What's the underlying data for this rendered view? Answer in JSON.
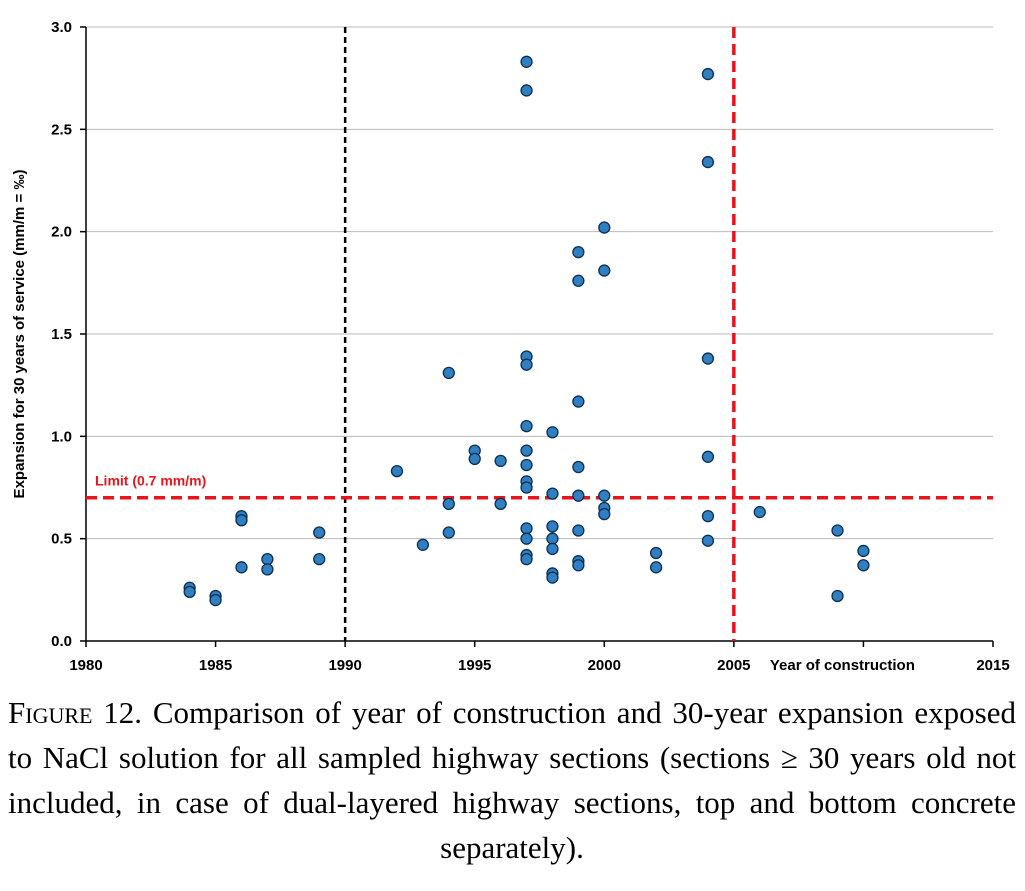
{
  "chart_data": {
    "type": "scatter",
    "ylabel": "Expansion for 30 years of service (mm/m = ‰)",
    "xlabel": "Year of construction",
    "xlim": [
      1980,
      2015
    ],
    "ylim": [
      0.0,
      3.0
    ],
    "x_ticks": [
      "1980",
      "1985",
      "1990",
      "1995",
      "2000",
      "2005",
      "2015"
    ],
    "y_ticks": [
      "0.0",
      "0.5",
      "1.0",
      "1.5",
      "2.0",
      "2.5",
      "3.0"
    ],
    "grid": "horizontal",
    "limit_line": {
      "label": "Limit (0.7 mm/m)",
      "value": 0.7,
      "color": "#e8141b"
    },
    "vertical_lines": [
      {
        "x": 1990,
        "color": "#000000"
      },
      {
        "x": 2005,
        "color": "#e8141b"
      }
    ],
    "marker_color": "#2f7fc1",
    "points": [
      [
        1984,
        0.26
      ],
      [
        1984,
        0.24
      ],
      [
        1985,
        0.22
      ],
      [
        1985,
        0.2
      ],
      [
        1986,
        0.61
      ],
      [
        1986,
        0.59
      ],
      [
        1986,
        0.36
      ],
      [
        1987,
        0.4
      ],
      [
        1987,
        0.35
      ],
      [
        1989,
        0.53
      ],
      [
        1989,
        0.4
      ],
      [
        1992,
        0.83
      ],
      [
        1993,
        0.47
      ],
      [
        1994,
        1.31
      ],
      [
        1994,
        0.67
      ],
      [
        1994,
        0.53
      ],
      [
        1995,
        0.93
      ],
      [
        1995,
        0.89
      ],
      [
        1996,
        0.88
      ],
      [
        1996,
        0.67
      ],
      [
        1997,
        2.83
      ],
      [
        1997,
        2.69
      ],
      [
        1997,
        1.39
      ],
      [
        1997,
        1.35
      ],
      [
        1997,
        1.05
      ],
      [
        1997,
        0.93
      ],
      [
        1997,
        0.86
      ],
      [
        1997,
        0.78
      ],
      [
        1997,
        0.75
      ],
      [
        1997,
        0.55
      ],
      [
        1997,
        0.5
      ],
      [
        1997,
        0.42
      ],
      [
        1997,
        0.4
      ],
      [
        1998,
        1.02
      ],
      [
        1998,
        0.72
      ],
      [
        1998,
        0.56
      ],
      [
        1998,
        0.5
      ],
      [
        1998,
        0.45
      ],
      [
        1998,
        0.33
      ],
      [
        1998,
        0.31
      ],
      [
        1999,
        1.9
      ],
      [
        1999,
        1.76
      ],
      [
        1999,
        1.17
      ],
      [
        1999,
        0.85
      ],
      [
        1999,
        0.71
      ],
      [
        1999,
        0.54
      ],
      [
        1999,
        0.39
      ],
      [
        1999,
        0.37
      ],
      [
        2000,
        2.02
      ],
      [
        2000,
        1.81
      ],
      [
        2000,
        0.71
      ],
      [
        2000,
        0.65
      ],
      [
        2000,
        0.62
      ],
      [
        2002,
        0.43
      ],
      [
        2002,
        0.36
      ],
      [
        2004,
        2.77
      ],
      [
        2004,
        2.34
      ],
      [
        2004,
        1.38
      ],
      [
        2004,
        0.9
      ],
      [
        2004,
        0.61
      ],
      [
        2004,
        0.49
      ],
      [
        2006,
        0.63
      ],
      [
        2009,
        0.54
      ],
      [
        2009,
        0.22
      ],
      [
        2010,
        0.44
      ],
      [
        2010,
        0.37
      ]
    ]
  },
  "caption": {
    "label": "Figure 12.",
    "text": " Comparison of year of construction and 30-year expansion exposed to NaCl solution for all sampled highway sections (sections ≥ 30 years old not included, in case of dual-layered highway sections, top and bottom concrete separately)."
  }
}
